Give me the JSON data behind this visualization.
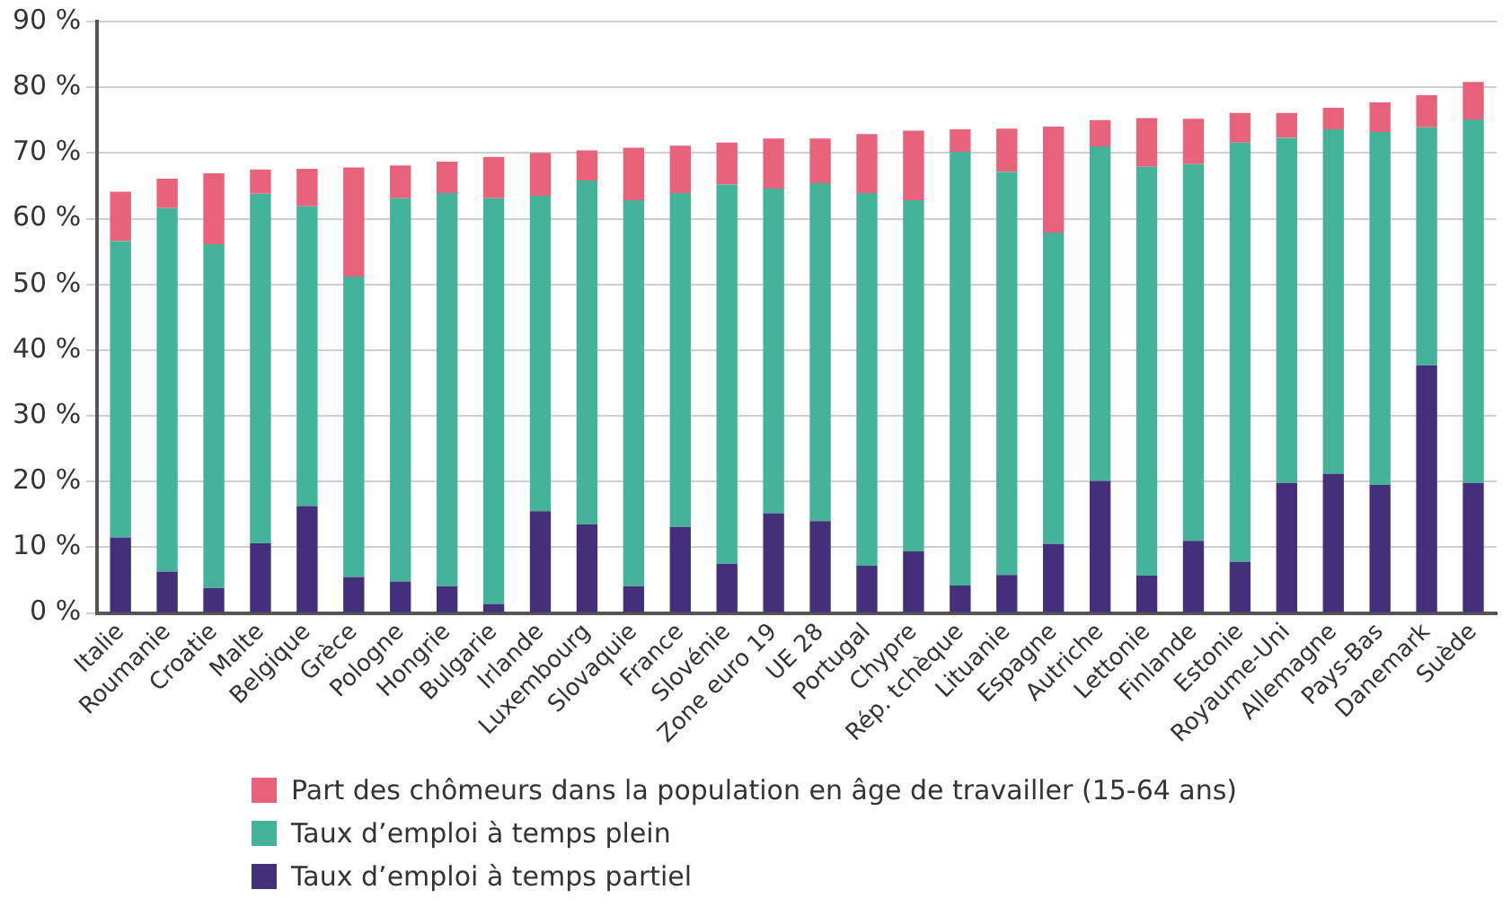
{
  "chart_data": {
    "type": "bar",
    "stacked": true,
    "legend": "bottom",
    "grid": "y",
    "categories": [
      "Italie",
      "Roumanie",
      "Croatie",
      "Malte",
      "Belgique",
      "Grèce",
      "Pologne",
      "Hongrie",
      "Bulgarie",
      "Irlande",
      "Luxembourg",
      "Slovaquie",
      "France",
      "Slovénie",
      "Zone euro 19",
      "UE 28",
      "Portugal",
      "Chypre",
      "Rép. tchèque",
      "Lituanie",
      "Espagne",
      "Autriche",
      "Lettonie",
      "Finlande",
      "Estonie",
      "Royaume-Uni",
      "Allemagne",
      "Pays-Bas",
      "Danemark",
      "Suède"
    ],
    "ylim": [
      0,
      90
    ],
    "yticks": [
      {
        "value": 0,
        "label": "0 %"
      },
      {
        "value": 10,
        "label": "10 %"
      },
      {
        "value": 20,
        "label": "20 %"
      },
      {
        "value": 30,
        "label": "30 %"
      },
      {
        "value": 40,
        "label": "40 %"
      },
      {
        "value": 50,
        "label": "50 %"
      },
      {
        "value": 60,
        "label": "60 %"
      },
      {
        "value": 70,
        "label": "70 %"
      },
      {
        "value": 80,
        "label": "80 %"
      },
      {
        "value": 90,
        "label": "90 %"
      }
    ],
    "series": [
      {
        "name": "Taux d’emploi à temps partiel",
        "color": "#44307a",
        "values": [
          11.5,
          6.3,
          3.8,
          10.6,
          16.3,
          5.5,
          4.8,
          4.1,
          1.4,
          15.5,
          13.5,
          4.1,
          13.1,
          7.5,
          15.2,
          14.0,
          7.2,
          9.4,
          4.2,
          5.8,
          10.5,
          20.1,
          5.7,
          11.0,
          7.8,
          19.8,
          21.2,
          19.5,
          37.7,
          19.8
        ]
      },
      {
        "name": "Taux d’emploi à temps plein",
        "color": "#45b39a",
        "values": [
          45.1,
          55.3,
          52.3,
          53.2,
          45.6,
          45.7,
          58.3,
          59.8,
          61.7,
          48.0,
          52.3,
          58.7,
          50.8,
          57.7,
          49.4,
          51.4,
          56.7,
          53.4,
          66.0,
          61.3,
          47.4,
          50.9,
          62.2,
          57.3,
          63.8,
          52.5,
          52.4,
          53.7,
          36.2,
          55.3
        ]
      },
      {
        "name": "Part des chômeurs dans la population en âge de travailler (15-64 ans)",
        "color": "#e8627b",
        "values": [
          7.5,
          4.5,
          10.8,
          3.7,
          5.7,
          16.6,
          5.0,
          4.8,
          6.3,
          6.5,
          4.6,
          8.0,
          7.2,
          6.4,
          7.6,
          6.8,
          9.0,
          10.6,
          3.4,
          6.6,
          16.1,
          4.0,
          7.4,
          6.9,
          4.5,
          3.8,
          3.3,
          4.5,
          4.9,
          5.7
        ]
      }
    ]
  }
}
